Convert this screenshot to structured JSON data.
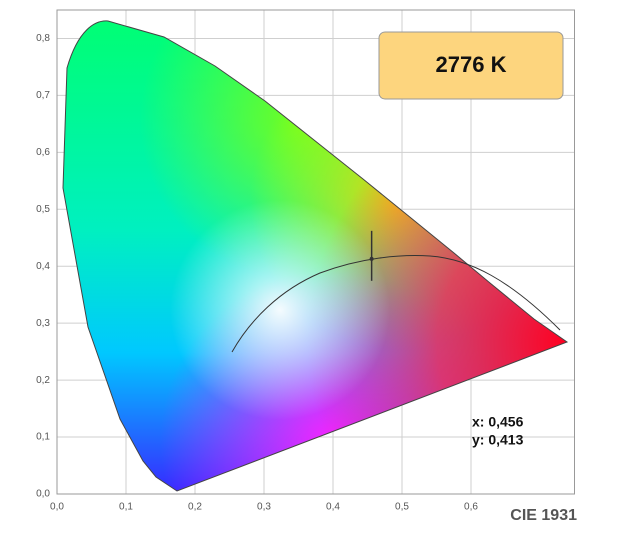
{
  "chart_data": {
    "type": "scatter",
    "title": "CIE 1931",
    "annotations": [
      "2776 K",
      "x: 0,456",
      "y: 0,413"
    ],
    "x": [
      0.456
    ],
    "values": [
      0.413
    ],
    "color": "#333333",
    "xlim": [
      0,
      0.75
    ],
    "ylim": [
      0,
      0.85
    ],
    "xticks": [
      {
        "value": 0,
        "label": "0,0"
      },
      {
        "value": 0.1,
        "label": "0,1"
      },
      {
        "value": 0.2,
        "label": "0,2"
      },
      {
        "value": 0.3,
        "label": "0,3"
      },
      {
        "value": 0.4,
        "label": "0,4"
      },
      {
        "value": 0.5,
        "label": "0,5"
      },
      {
        "value": 0.6,
        "label": "0,6"
      }
    ],
    "yticks": [
      {
        "value": 0,
        "label": "0,0"
      },
      {
        "value": 0.1,
        "label": "0,1"
      },
      {
        "value": 0.2,
        "label": "0,2"
      },
      {
        "value": 0.3,
        "label": "0,3"
      },
      {
        "value": 0.4,
        "label": "0,4"
      },
      {
        "value": 0.5,
        "label": "0,5"
      },
      {
        "value": 0.6,
        "label": "0,6"
      },
      {
        "value": 0.7,
        "label": "0,7"
      },
      {
        "value": 0.8,
        "label": "0,8"
      }
    ],
    "grid": true
  }
}
